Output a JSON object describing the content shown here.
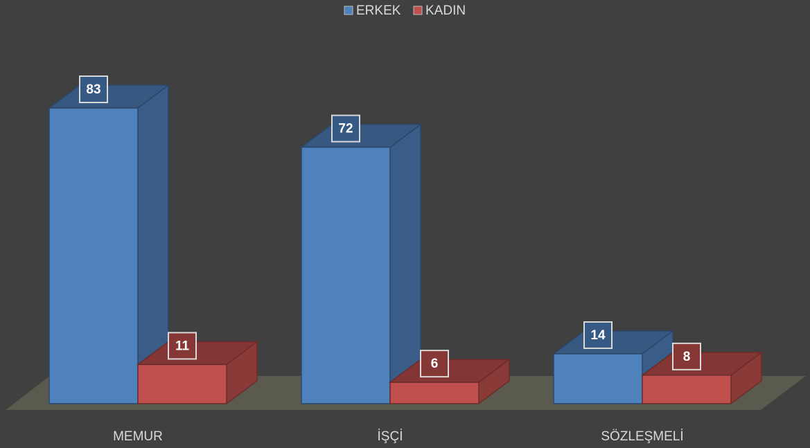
{
  "chart_data": {
    "type": "bar3d",
    "categories": [
      "MEMUR",
      "İŞÇİ",
      "SÖZLEŞMELİ"
    ],
    "series": [
      {
        "name": "ERKEK",
        "color": "#4f81bd",
        "values": [
          83,
          72,
          14
        ]
      },
      {
        "name": "KADIN",
        "color": "#c0504d",
        "values": [
          11,
          6,
          8
        ]
      }
    ],
    "legend": "top"
  }
}
